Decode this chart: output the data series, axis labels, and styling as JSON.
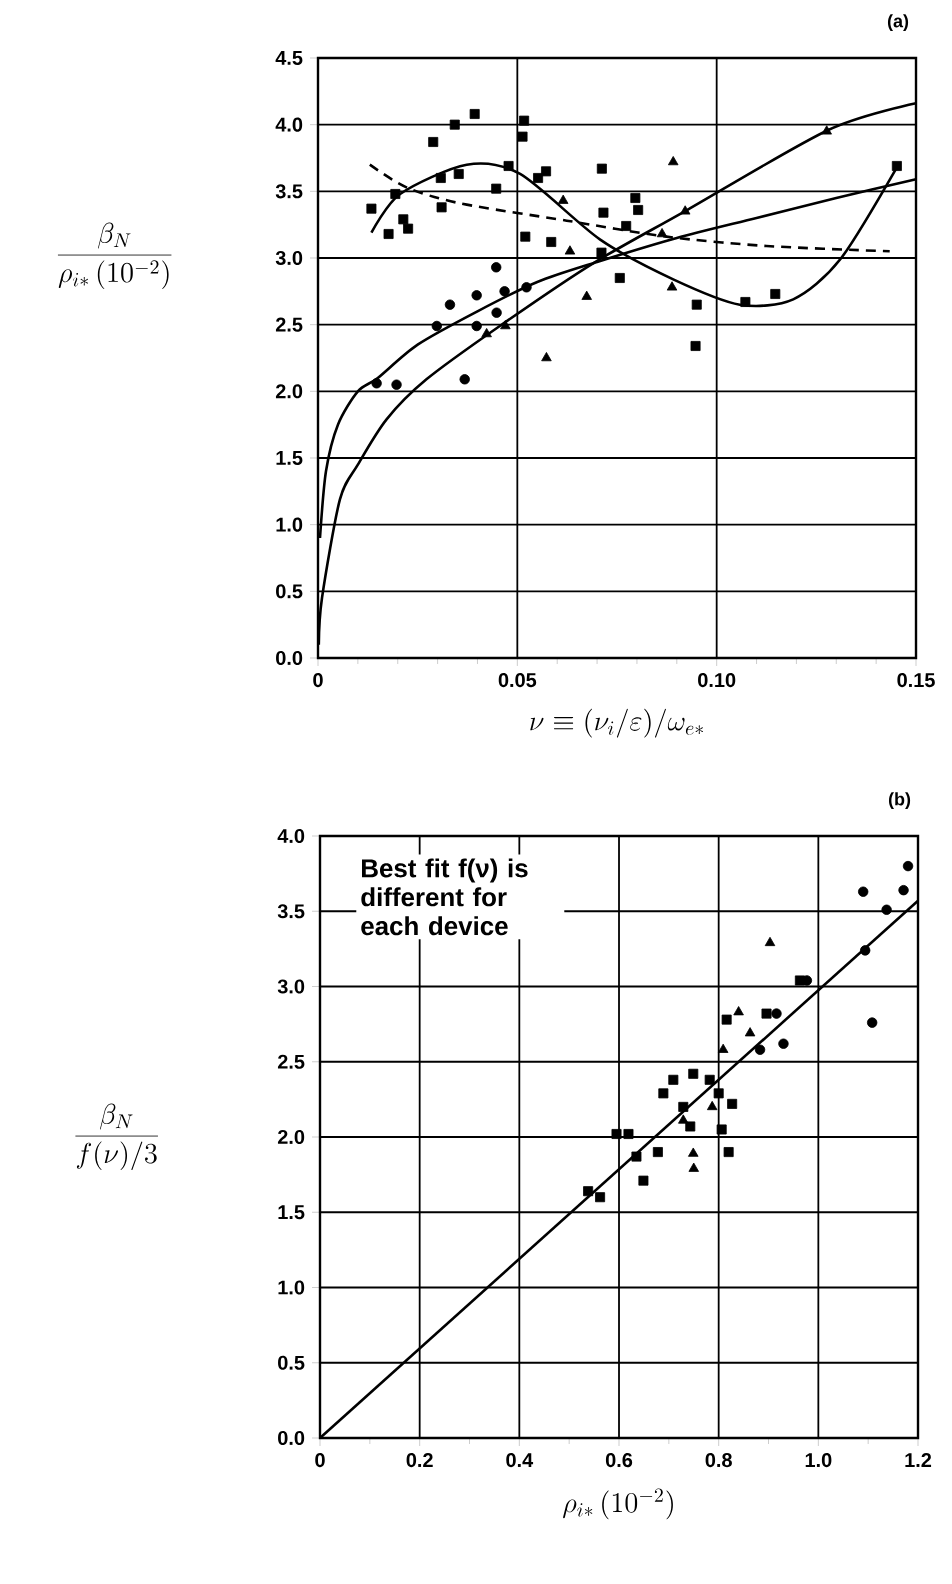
{
  "chart_data": [
    {
      "type": "scatter",
      "title": "(a)",
      "xlabel": "\\nu \\equiv (\\nu_i/\\varepsilon)/\\omega_{e*}",
      "ylabel": "\\frac{\\beta_N}{\\rho_{i*}\\,(10^{-2})}",
      "xlim": [
        0,
        0.15
      ],
      "ylim": [
        0,
        4.5
      ],
      "xticks": [
        0,
        {
          "value": 0.05,
          "label": "0.05"
        },
        {
          "value": 0.1,
          "label": "0.10"
        },
        {
          "value": 0.15,
          "label": "0.15"
        }
      ],
      "yticks": [
        {
          "value": 0,
          "label": "0.0"
        },
        {
          "value": 0.5,
          "label": "0.5"
        },
        {
          "value": 1,
          "label": "1.0"
        },
        {
          "value": 1.5,
          "label": "1.5"
        },
        {
          "value": 2,
          "label": "2.0"
        },
        {
          "value": 2.5,
          "label": "2.5"
        },
        {
          "value": 3,
          "label": "3.0"
        },
        {
          "value": 3.5,
          "label": "3.5"
        },
        {
          "value": 4,
          "label": "4.0"
        },
        {
          "value": 4.5,
          "label": "4.5"
        }
      ],
      "grid": true,
      "series": [
        {
          "marker": "square",
          "color": "#000000",
          "x": [
            0.0134,
            0.0177,
            0.0194,
            0.0214,
            0.0226,
            0.0289,
            0.031,
            0.0308,
            0.0343,
            0.0353,
            0.0393,
            0.0447,
            0.0478,
            0.0517,
            0.0513,
            0.052,
            0.0552,
            0.0572,
            0.0585,
            0.0712,
            0.0716,
            0.0711,
            0.0757,
            0.0773,
            0.0796,
            0.0803,
            0.095,
            0.0947,
            0.1072,
            0.1147,
            0.1452
          ],
          "values": [
            3.37,
            3.18,
            3.48,
            3.29,
            3.22,
            3.87,
            3.38,
            3.6,
            4.0,
            3.63,
            4.08,
            3.52,
            3.69,
            4.03,
            3.91,
            3.16,
            3.6,
            3.65,
            3.12,
            3.67,
            3.34,
            3.04,
            2.85,
            3.24,
            3.45,
            3.36,
            2.65,
            2.34,
            2.67,
            2.73,
            3.69
          ]
        },
        {
          "marker": "circle",
          "color": "#000000",
          "x": [
            0.0447,
            0.0331,
            0.0398,
            0.0468,
            0.0523,
            0.0298,
            0.0398,
            0.0448,
            0.0147,
            0.0197,
            0.0368
          ],
          "values": [
            2.93,
            2.65,
            2.72,
            2.75,
            2.78,
            2.49,
            2.49,
            2.59,
            2.06,
            2.05,
            2.09
          ]
        },
        {
          "marker": "triangle",
          "color": "#000000",
          "x": [
            0.1276,
            0.0891,
            0.0921,
            0.0863,
            0.0632,
            0.0674,
            0.0888,
            0.0573,
            0.047,
            0.0423,
            0.0615
          ],
          "values": [
            3.95,
            3.72,
            3.35,
            3.18,
            3.05,
            2.71,
            2.78,
            2.25,
            2.49,
            2.43,
            3.43
          ]
        },
        {
          "type": "line",
          "line_style": "solid",
          "color": "#000000",
          "x": [
            0.0005,
            0.002,
            0.005,
            0.01,
            0.015,
            0.025,
            0.04,
            0.055,
            0.07,
            0.09,
            0.11,
            0.13,
            0.15
          ],
          "values": [
            0.9,
            1.4,
            1.75,
            2.0,
            2.1,
            2.35,
            2.6,
            2.82,
            2.97,
            3.15,
            3.3,
            3.45,
            3.59
          ]
        },
        {
          "type": "line",
          "line_style": "solid",
          "color": "#000000",
          "x": [
            0.0002,
            0.001,
            0.0055,
            0.01,
            0.0172,
            0.0272,
            0.0456,
            0.069,
            0.092,
            0.128,
            0.15
          ],
          "values": [
            0.1,
            0.45,
            1.19,
            1.45,
            1.79,
            2.09,
            2.49,
            2.96,
            3.35,
            3.96,
            4.16
          ]
        },
        {
          "type": "line",
          "line_style": "solid",
          "color": "#000000",
          "x": [
            0.0134,
            0.0206,
            0.0373,
            0.0507,
            0.0707,
            0.0891,
            0.1058,
            0.1192,
            0.131,
            0.1452
          ],
          "values": [
            3.19,
            3.48,
            3.7,
            3.63,
            3.14,
            2.84,
            2.65,
            2.69,
            2.99,
            3.68
          ]
        },
        {
          "type": "line",
          "line_style": "dashed",
          "color": "#000000",
          "x": [
            0.013,
            0.0222,
            0.0356,
            0.0624,
            0.0874,
            0.1125,
            0.1434
          ],
          "values": [
            3.7,
            3.53,
            3.41,
            3.28,
            3.16,
            3.09,
            3.05
          ]
        }
      ]
    },
    {
      "type": "scatter",
      "title": "(b)",
      "xlabel": "\\rho_{i*}\\,(10^{-2})",
      "ylabel": "\\frac{\\beta_N}{f(\\nu)/3}",
      "annotations": [
        "Best fit f(ν) is different for each device"
      ],
      "xlim": [
        0,
        1.2
      ],
      "ylim": [
        0,
        4
      ],
      "xticks": [
        0,
        0.2,
        0.4,
        0.6,
        0.8,
        {
          "value": 1,
          "label": "1.0"
        },
        1.2
      ],
      "yticks": [
        {
          "value": 0,
          "label": "0.0"
        },
        {
          "value": 0.5,
          "label": "0.5"
        },
        {
          "value": 1,
          "label": "1.0"
        },
        {
          "value": 1.5,
          "label": "1.5"
        },
        {
          "value": 2,
          "label": "2.0"
        },
        {
          "value": 2.5,
          "label": "2.5"
        },
        {
          "value": 3,
          "label": "3.0"
        },
        {
          "value": 3.5,
          "label": "3.5"
        },
        {
          "value": 4,
          "label": "4.0"
        }
      ],
      "grid": true,
      "series": [
        {
          "marker": "square",
          "color": "#000000",
          "x": [
            0.816,
            0.562,
            0.538,
            0.595,
            0.619,
            0.635,
            0.678,
            0.649,
            0.689,
            0.709,
            0.749,
            0.729,
            0.743,
            0.782,
            0.827,
            0.806,
            0.82,
            0.963,
            0.896,
            0.8
          ],
          "values": [
            2.78,
            1.6,
            1.64,
            2.02,
            2.02,
            1.87,
            1.9,
            1.71,
            2.29,
            2.38,
            2.42,
            2.2,
            2.07,
            2.38,
            2.22,
            2.05,
            1.9,
            3.04,
            2.82,
            2.29
          ]
        },
        {
          "marker": "circle",
          "color": "#000000",
          "x": [
            1.18,
            1.171,
            1.09,
            1.137,
            1.094,
            1.108,
            0.93,
            0.883,
            0.916,
            0.977
          ],
          "values": [
            3.8,
            3.64,
            3.63,
            3.51,
            3.24,
            2.76,
            2.62,
            2.58,
            2.82,
            3.04
          ]
        },
        {
          "marker": "triangle",
          "color": "#000000",
          "x": [
            0.903,
            0.84,
            0.809,
            0.863,
            0.749,
            0.75,
            0.729,
            0.787
          ],
          "values": [
            3.29,
            2.83,
            2.58,
            2.69,
            1.89,
            1.79,
            2.11,
            2.2
          ]
        },
        {
          "type": "line",
          "line_style": "solid",
          "color": "#000000",
          "x": [
            0,
            1.2
          ],
          "values": [
            0,
            3.57
          ]
        }
      ]
    }
  ]
}
